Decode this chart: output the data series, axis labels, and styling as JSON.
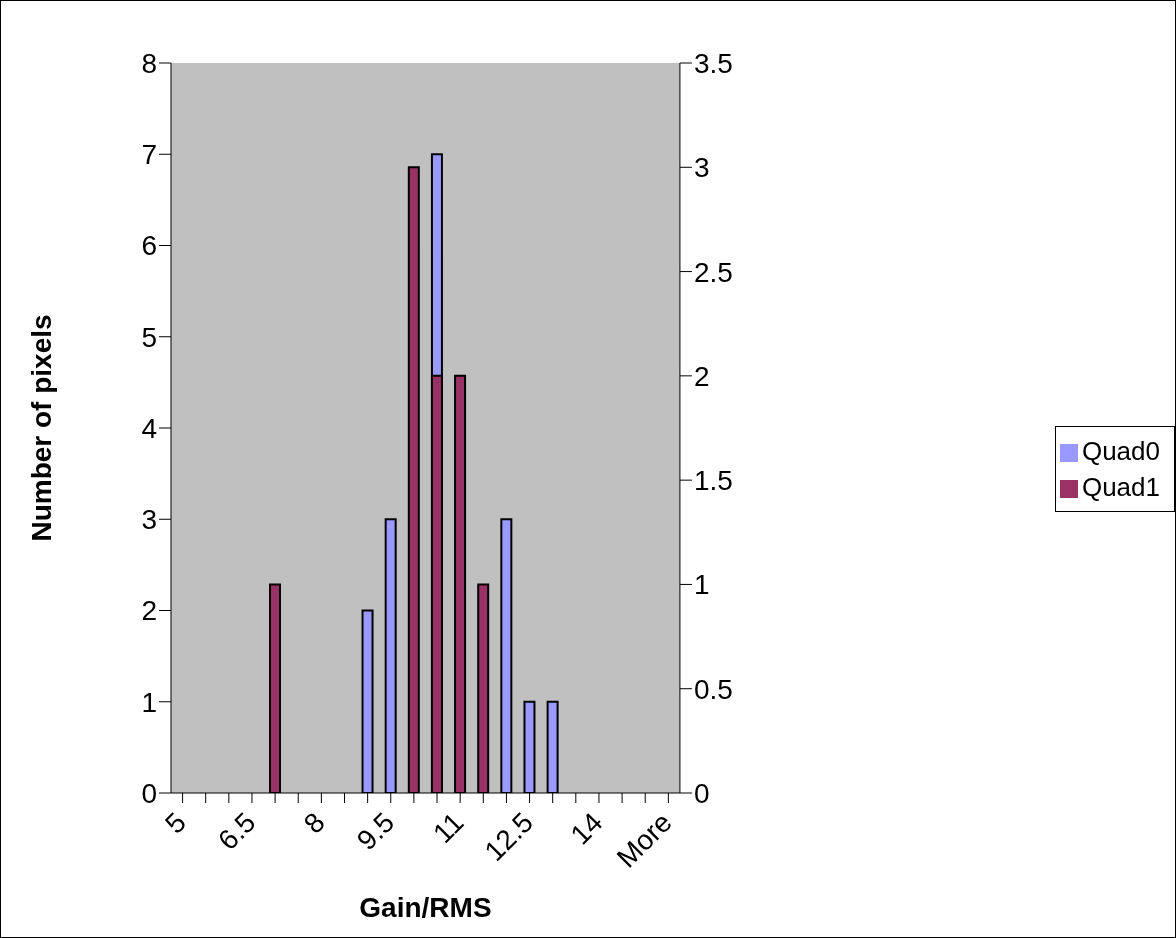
{
  "chart_data": {
    "type": "bar",
    "xlabel": "Gain/RMS",
    "ylabel": "Number of pixels",
    "categories": [
      "5",
      null,
      null,
      "6.5",
      null,
      null,
      "8",
      null,
      null,
      "9.5",
      null,
      null,
      "11",
      null,
      null,
      "12.5",
      null,
      null,
      "14",
      null,
      null,
      "More"
    ],
    "series": [
      {
        "name": "Quad0",
        "color": "#9999ff",
        "values": [
          0,
          0,
          0,
          0,
          0,
          0,
          0,
          0,
          2,
          3,
          null,
          7,
          null,
          null,
          3,
          1,
          1,
          0,
          0,
          0,
          0,
          0
        ]
      },
      {
        "name": "Quad1",
        "color": "#993366",
        "axis": "y2",
        "values": [
          0,
          0,
          0,
          0,
          1,
          0,
          0,
          0,
          0,
          0,
          3,
          2,
          2,
          1,
          0,
          0,
          0,
          0,
          0,
          0,
          0,
          0
        ]
      }
    ],
    "ylim": [
      0,
      8
    ],
    "yticks": [
      0,
      1,
      2,
      3,
      4,
      5,
      6,
      7,
      8
    ],
    "y2lim": [
      0,
      3.5
    ],
    "y2ticks": [
      0,
      0.5,
      1,
      1.5,
      2,
      2.5,
      3,
      3.5
    ],
    "legend": "right",
    "grid": false
  }
}
